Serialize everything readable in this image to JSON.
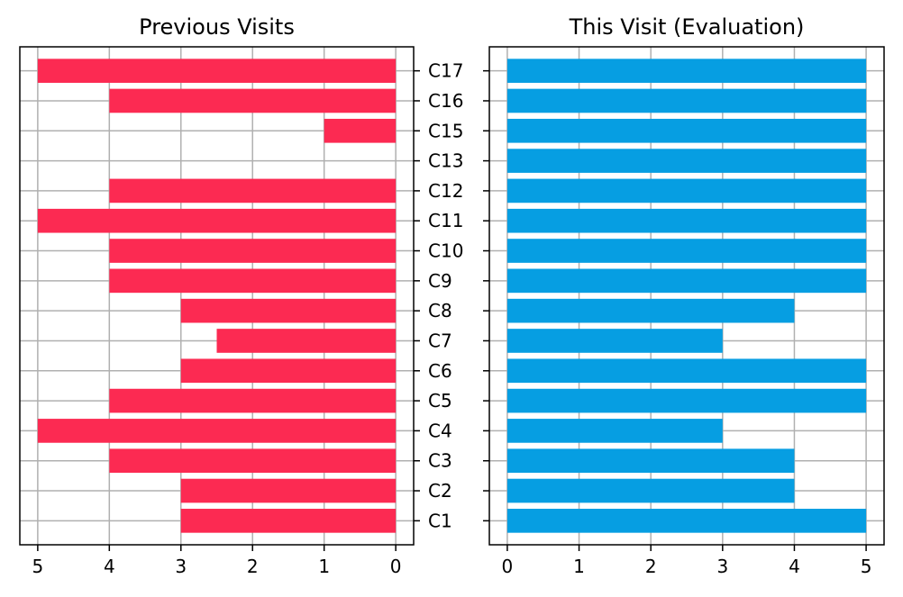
{
  "chart_data": [
    {
      "type": "bar",
      "orientation": "horizontal",
      "title": "Previous Visits",
      "categories": [
        "C1",
        "C2",
        "C3",
        "C4",
        "C5",
        "C6",
        "C7",
        "C8",
        "C9",
        "C10",
        "C11",
        "C12",
        "C13",
        "C15",
        "C16",
        "C17"
      ],
      "values": [
        3,
        3,
        4,
        5,
        4,
        3,
        2.5,
        3,
        4,
        4,
        5,
        4,
        0,
        1,
        4,
        5
      ],
      "xlim": [
        5,
        0
      ],
      "xticks": [
        "5",
        "4",
        "3",
        "2",
        "1",
        "0"
      ],
      "x_inverted": true,
      "ytick_position": "right",
      "grid": true,
      "color": "#fc2a52"
    },
    {
      "type": "bar",
      "orientation": "horizontal",
      "title": "This Visit (Evaluation)",
      "categories": [
        "C1",
        "C2",
        "C3",
        "C4",
        "C5",
        "C6",
        "C7",
        "C8",
        "C9",
        "C10",
        "C11",
        "C12",
        "C13",
        "C15",
        "C16",
        "C17"
      ],
      "values": [
        5,
        4,
        4,
        3,
        5,
        5,
        3,
        4,
        5,
        5,
        5,
        5,
        5,
        5,
        5,
        5
      ],
      "xlim": [
        0,
        5
      ],
      "xticks": [
        "0",
        "1",
        "2",
        "3",
        "4",
        "5"
      ],
      "ytick_position": "left",
      "grid": true,
      "color": "#069ee2"
    }
  ]
}
